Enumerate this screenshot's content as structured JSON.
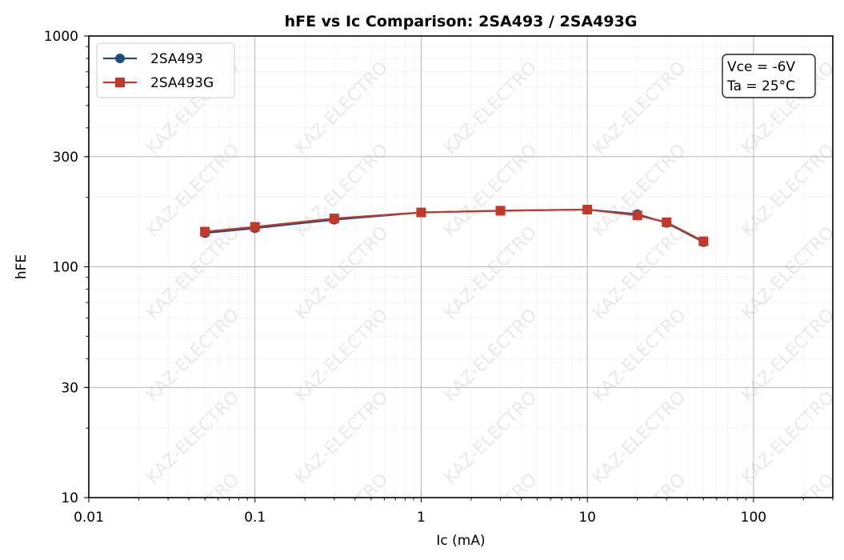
{
  "chart_data": {
    "type": "line",
    "title": "hFE vs Ic Comparison: 2SA493 / 2SA493G",
    "xlabel": "Ic (mA)",
    "ylabel": "hFE",
    "xscale": "log",
    "yscale": "log",
    "xlim": [
      0.01,
      300
    ],
    "ylim": [
      10,
      1000
    ],
    "grid": true,
    "legend_position": "top-left",
    "x_ticks": [
      0.01,
      0.1,
      1,
      10,
      100
    ],
    "x_tick_labels": [
      "0.01",
      "0.1",
      "1",
      "10",
      "100"
    ],
    "y_ticks": [
      10,
      30,
      100,
      300,
      1000
    ],
    "y_tick_labels": [
      "10",
      "30",
      "100",
      "300",
      "1000"
    ],
    "annotation": [
      "Vce = -6V",
      "Ta = 25°C"
    ],
    "watermark": "KAZ-ELECTRO",
    "series": [
      {
        "name": "2SA493",
        "color": "#1f4e79",
        "marker": "circle",
        "x": [
          0.05,
          0.1,
          0.3,
          1,
          3,
          10,
          20,
          30,
          50
        ],
        "y": [
          140,
          147,
          160,
          172,
          175,
          177,
          169,
          155,
          128
        ]
      },
      {
        "name": "2SA493G",
        "color": "#c0392b",
        "marker": "square",
        "x": [
          0.05,
          0.1,
          0.3,
          1,
          3,
          10,
          20,
          30,
          50
        ],
        "y": [
          142,
          149,
          162,
          172,
          175,
          177,
          167,
          156,
          129
        ]
      }
    ]
  }
}
